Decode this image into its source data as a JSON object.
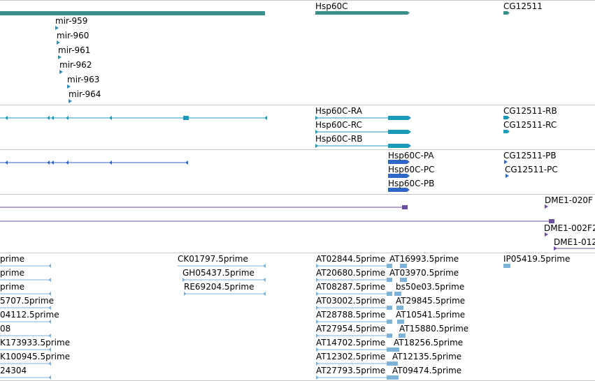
{
  "colors": {
    "gene": "#3a8f8a",
    "mirna": "#2f8fb3",
    "transcript": "#1a9ab8",
    "cds": "#2f66c8",
    "probe": "#6d4fa0",
    "est": "#7fb2d8",
    "separator": "#c8c8c8"
  },
  "tracks": {
    "genes": {
      "labels": [
        "Hsp60C",
        "CG12511"
      ]
    },
    "mirnas": {
      "labels": [
        "mir-959",
        "mir-960",
        "mir-961",
        "mir-962",
        "mir-963",
        "mir-964"
      ]
    },
    "transcripts": {
      "labels": [
        "Hsp60C-RA",
        "Hsp60C-RC",
        "Hsp60C-RB",
        "CG12511-RB",
        "CG12511-RC"
      ]
    },
    "proteins": {
      "labels": [
        "Hsp60C-PA",
        "Hsp60C-PC",
        "Hsp60C-PB",
        "CG12511-PB",
        "CG12511-PC"
      ]
    },
    "probes": {
      "labels": [
        "DME1-020F",
        "DME1-002F2",
        "DME1-012"
      ]
    },
    "ests": {
      "left_labels": [
        "prime",
        "prime",
        "prime",
        "5707.5prime",
        "04112.5prime",
        "08",
        "K173933.5prime",
        "K100945.5prime",
        "24304"
      ],
      "middle_labels": [
        "CK01797.5prime",
        "GH05437.5prime",
        "RE69204.5prime"
      ],
      "at_labels": [
        "AT02844.5prime",
        "AT20680.5prime",
        "AT08287.5prime",
        "AT03002.5prime",
        "AT28788.5prime",
        "AT27954.5prime",
        "AT14702.5prime",
        "AT12302.5prime",
        "AT27793.5prime"
      ],
      "right_labels": [
        "AT16993.5prime",
        "AT03970.5prime",
        "bs50e03.5prime",
        "AT29845.5prime",
        "AT10541.5prime",
        "AT15880.5prime",
        "AT18256.5prime",
        "AT12135.5prime",
        "AT09474.5prime"
      ],
      "far_label": "IP05419.5prime"
    }
  }
}
